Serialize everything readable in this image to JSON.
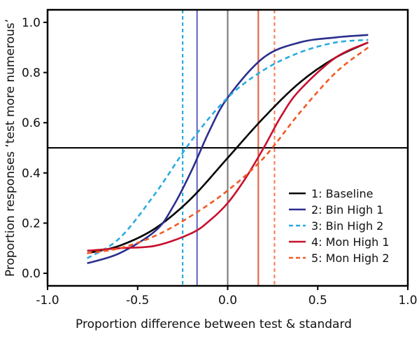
{
  "chart_data": {
    "type": "line",
    "xlabel": "Proportion difference between test & standard",
    "ylabel": "Proportion responses ‘test more numerous’",
    "xlim": [
      -1.0,
      1.0
    ],
    "ylim": [
      -0.05,
      1.05
    ],
    "x_ticks": [
      -1.0,
      -0.5,
      0.0,
      0.5,
      1.0
    ],
    "x_tick_labels": [
      "-1.0",
      "-0.5",
      "0.0",
      "0.5",
      "1.0"
    ],
    "y_ticks": [
      0.0,
      0.2,
      0.4,
      0.6,
      0.8,
      1.0
    ],
    "y_tick_labels": [
      "0.0",
      "0.2",
      "0.4",
      "0.6",
      "0.8",
      "1.0"
    ],
    "legend_position": "bottom-right",
    "reference_line_y": 0.5,
    "series": [
      {
        "name": "1: Baseline",
        "color": "#000000",
        "dash": "solid",
        "pse": 0.0,
        "x": [
          -0.78,
          -0.6,
          -0.4,
          -0.2,
          0.0,
          0.2,
          0.4,
          0.6,
          0.78
        ],
        "y": [
          0.08,
          0.11,
          0.18,
          0.3,
          0.46,
          0.62,
          0.76,
          0.86,
          0.92
        ]
      },
      {
        "name": "2: Bin High 1",
        "color": "#2b2f8e",
        "dash": "solid",
        "pse": -0.17,
        "x": [
          -0.78,
          -0.6,
          -0.4,
          -0.3,
          -0.2,
          -0.1,
          0.0,
          0.2,
          0.4,
          0.6,
          0.78
        ],
        "y": [
          0.04,
          0.08,
          0.17,
          0.27,
          0.41,
          0.57,
          0.7,
          0.86,
          0.92,
          0.94,
          0.95
        ]
      },
      {
        "name": "3: Bin High 2",
        "color": "#29abe2",
        "dash": "dashed",
        "pse": -0.25,
        "x": [
          -0.78,
          -0.6,
          -0.4,
          -0.2,
          0.0,
          0.2,
          0.4,
          0.6,
          0.78
        ],
        "y": [
          0.06,
          0.14,
          0.32,
          0.53,
          0.7,
          0.81,
          0.88,
          0.92,
          0.93
        ]
      },
      {
        "name": "4: Mon High 1",
        "color": "#c8102e",
        "dash": "solid",
        "pse": 0.17,
        "x": [
          -0.78,
          -0.6,
          -0.4,
          -0.2,
          -0.1,
          0.0,
          0.1,
          0.2,
          0.3,
          0.4,
          0.6,
          0.78
        ],
        "y": [
          0.09,
          0.1,
          0.11,
          0.16,
          0.21,
          0.28,
          0.38,
          0.5,
          0.63,
          0.73,
          0.86,
          0.92
        ]
      },
      {
        "name": "5: Mon High 2",
        "color": "#f15a24",
        "dash": "dashed",
        "pse": 0.26,
        "x": [
          -0.78,
          -0.6,
          -0.4,
          -0.2,
          0.0,
          0.2,
          0.4,
          0.6,
          0.78
        ],
        "y": [
          0.08,
          0.1,
          0.15,
          0.23,
          0.33,
          0.46,
          0.64,
          0.8,
          0.9
        ]
      }
    ],
    "vertical_lines": [
      {
        "x": -0.25,
        "color": "#29abe2",
        "dash": "dashed"
      },
      {
        "x": -0.17,
        "color": "#6a6ec4",
        "dash": "solid"
      },
      {
        "x": 0.0,
        "color": "#808080",
        "dash": "solid"
      },
      {
        "x": 0.17,
        "color": "#e06a4c",
        "dash": "solid"
      },
      {
        "x": 0.26,
        "color": "#f4845f",
        "dash": "dashed"
      }
    ]
  }
}
